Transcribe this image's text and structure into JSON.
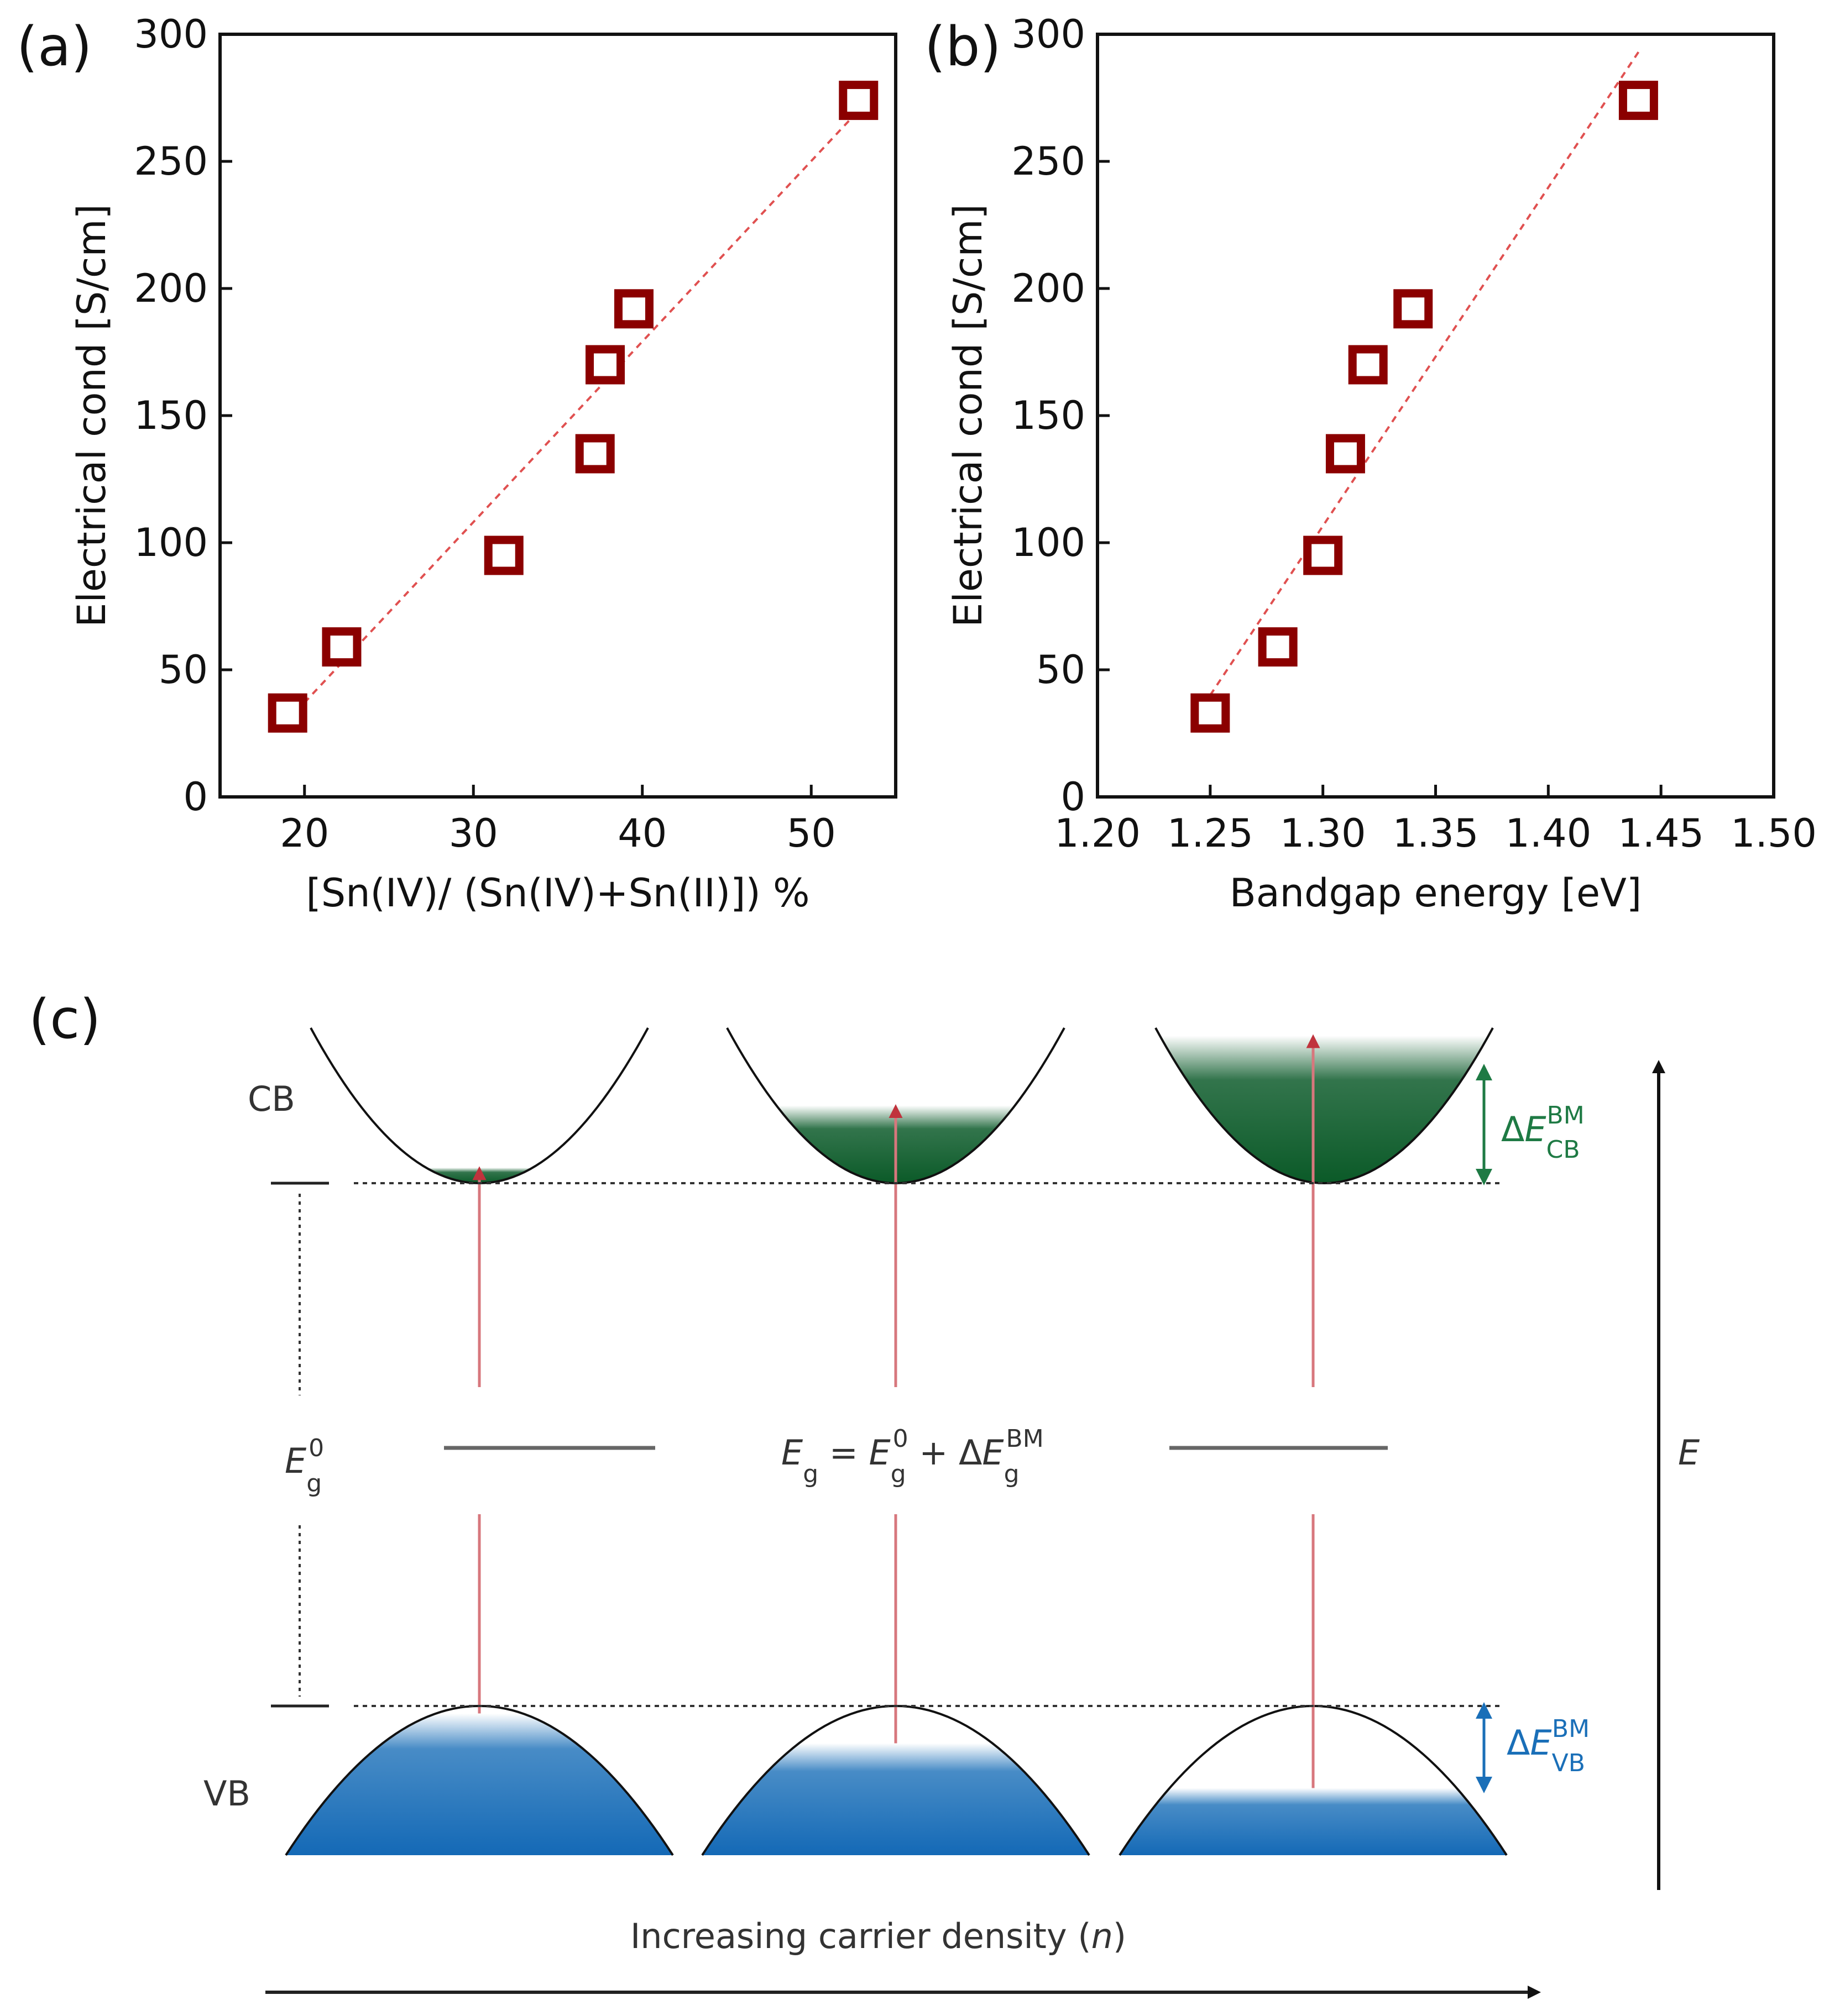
{
  "colors": {
    "marker": "#8b0000",
    "fit_line": "#e05050",
    "cb_fill": "#0e5c2c",
    "vb_fill": "#1a6fb8",
    "arrow": "#d7777d",
    "cb_bracket": "#1e7a44",
    "vb_bracket": "#1a6fb8"
  },
  "chart_data": [
    {
      "panel": "(a)",
      "type": "scatter",
      "xlabel": "[Sn(IV)/ (Sn(IV)+Sn(II)]) %",
      "ylabel": "Electrical cond [S/cm]",
      "xlim": [
        15,
        55
      ],
      "ylim": [
        0,
        300
      ],
      "xticks": [
        20,
        30,
        40,
        50
      ],
      "yticks": [
        0,
        50,
        100,
        150,
        200,
        250,
        300
      ],
      "x": [
        19,
        22.2,
        31.8,
        37.2,
        37.8,
        39.5,
        52.8
      ],
      "y": [
        33,
        59,
        95,
        135,
        170,
        192,
        274
      ],
      "fit_line": {
        "style": "dashed",
        "x": [
          19,
          52.8
        ],
        "y": [
          30,
          270
        ]
      }
    },
    {
      "panel": "(b)",
      "type": "scatter",
      "xlabel": "Bandgap energy [eV]",
      "ylabel": "Electrical cond [S/cm]",
      "xlim": [
        1.2,
        1.5
      ],
      "ylim": [
        0,
        300
      ],
      "xticks": [
        "1.20",
        "1.25",
        "1.30",
        "1.35",
        "1.40",
        "1.45",
        "1.50"
      ],
      "yticks": [
        0,
        50,
        100,
        150,
        200,
        250,
        300
      ],
      "x": [
        1.25,
        1.28,
        1.3,
        1.31,
        1.32,
        1.34,
        1.44
      ],
      "y": [
        33,
        59,
        95,
        135,
        170,
        192,
        274
      ],
      "fit_line": {
        "style": "dashed",
        "x": [
          1.25,
          1.44
        ],
        "y": [
          40,
          293
        ]
      }
    }
  ],
  "diagram": {
    "panel": "(c)",
    "cb_label": "CB",
    "vb_label": "VB",
    "eg0_label": "E",
    "eg0_sub": "g",
    "eg0_sup": "0",
    "eg_equation": {
      "lhs": "E",
      "lhs_sub": "g",
      "eq": " = ",
      "term1": "E",
      "term1_sub": "g",
      "term1_sup": "0",
      "plus": " + Δ",
      "term2": "E",
      "term2_sub": "g",
      "term2_sup": "BM"
    },
    "delta_cb": {
      "delta": "Δ",
      "symbol": "E",
      "sub": "CB",
      "sup": "BM"
    },
    "delta_vb": {
      "delta": "Δ",
      "symbol": "E",
      "sub": "VB",
      "sup": "BM"
    },
    "energy_axis_label": "E",
    "bottom_prefix": "Increasing carrier density (",
    "bottom_var": "n",
    "bottom_suffix": ")",
    "cb_fill_levels": [
      0.1,
      0.5,
      0.95
    ],
    "vb_fill_levels": [
      0.05,
      0.25,
      0.55
    ]
  }
}
